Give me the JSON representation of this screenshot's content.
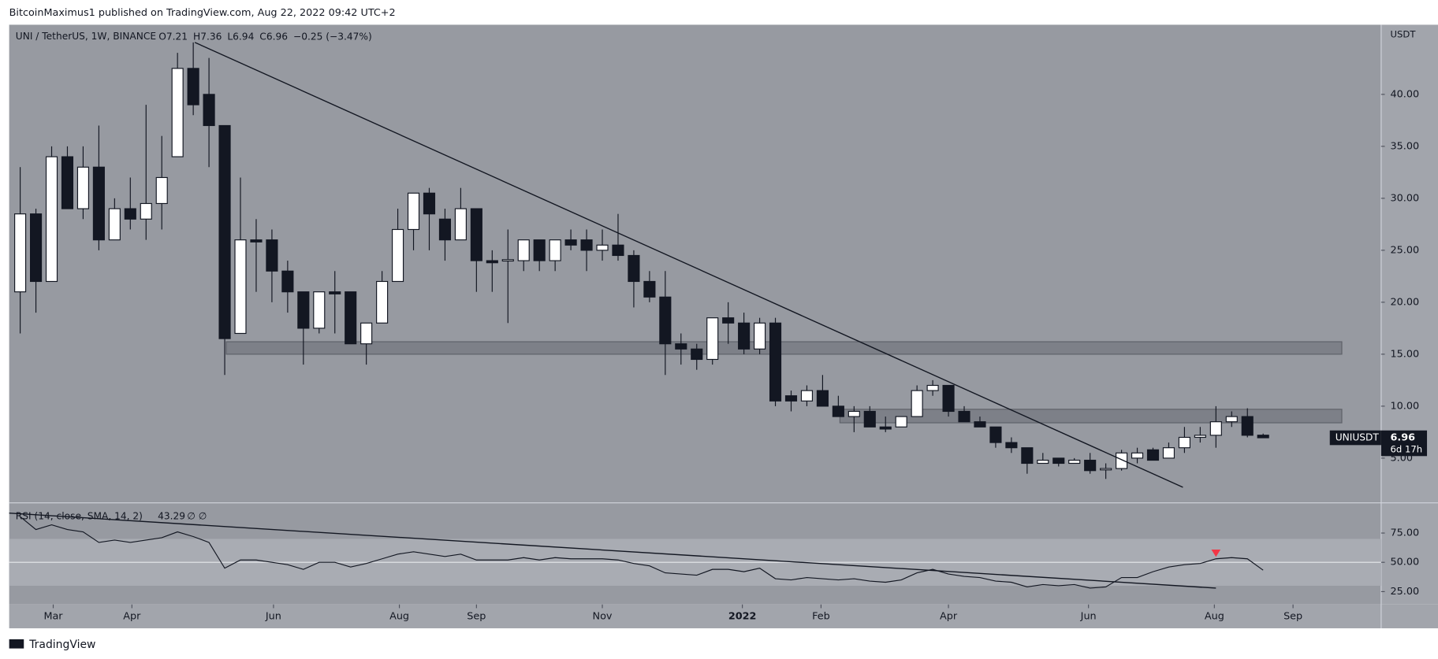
{
  "header": {
    "publisher": "BitcoinMaximus1 published on TradingView.com, Aug 22, 2022 09:42 UTC+2"
  },
  "footer": {
    "brand": "TradingView"
  },
  "chart_data": [
    {
      "type": "candlestick",
      "title": "UNI / TetherUS, 1W, BINANCE",
      "ohlc_labels": [
        "O",
        "H",
        "L",
        "C"
      ],
      "change": "−0.25 (−3.47%)",
      "unit": "USDT",
      "symbol": "UNIUSDT",
      "countdown": "6d 17h",
      "xlim": [
        -0.7,
        86.5
      ],
      "xticks": [
        {
          "value": 2.1,
          "label": "Mar"
        },
        {
          "value": 7.1,
          "label": "Apr"
        },
        {
          "value": 16.1,
          "label": "Jun"
        },
        {
          "value": 24.1,
          "label": "Aug"
        },
        {
          "value": 29.0,
          "label": "Sep"
        },
        {
          "value": 37.0,
          "label": "Nov"
        },
        {
          "value": 45.9,
          "label": "2022"
        },
        {
          "value": 50.9,
          "label": "Feb"
        },
        {
          "value": 59.0,
          "label": "Apr"
        },
        {
          "value": 67.9,
          "label": "Jun"
        },
        {
          "value": 75.9,
          "label": "Aug"
        },
        {
          "value": 80.9,
          "label": "Sep"
        }
      ],
      "ylim": [
        0.7,
        46.7
      ],
      "yticks": [
        {
          "value": 5,
          "label": "5.00"
        },
        {
          "value": 10,
          "label": "10.00"
        },
        {
          "value": 15,
          "label": "15.00"
        },
        {
          "value": 20,
          "label": "20.00"
        },
        {
          "value": 25,
          "label": "25.00"
        },
        {
          "value": 30,
          "label": "30.00"
        },
        {
          "value": 35,
          "label": "35.00"
        },
        {
          "value": 40,
          "label": "40.00"
        }
      ],
      "up_color": "#ffffff",
      "down_color": "#131722",
      "open": [
        21,
        28.5,
        22,
        34,
        29,
        33,
        26,
        29,
        28,
        29.5,
        34,
        42.5,
        40,
        37,
        17,
        26,
        26,
        23,
        21,
        17.5,
        21,
        21,
        16,
        18,
        22,
        27,
        30.5,
        28,
        26,
        29,
        24,
        24,
        24,
        26,
        24,
        26,
        26,
        25,
        25.5,
        24.5,
        22,
        20.5,
        16,
        15.5,
        14.5,
        18.5,
        18,
        15.5,
        18,
        11,
        10.5,
        11.5,
        10,
        9,
        9.5,
        8,
        8,
        9,
        11.5,
        12,
        9.5,
        8.5,
        8,
        6.5,
        6,
        4.5,
        5,
        4.5,
        4.8,
        3.9,
        4,
        5,
        5.8,
        5,
        6,
        7,
        7.2,
        8.5,
        9,
        7.21
      ],
      "high": [
        33,
        29,
        35,
        35,
        35,
        37,
        30,
        32,
        39,
        36,
        44,
        45,
        43.5,
        37,
        32,
        28,
        27,
        24,
        21,
        21,
        23,
        21,
        18,
        23,
        29,
        30.5,
        31,
        29,
        31,
        29,
        25,
        27,
        26,
        26,
        26,
        27,
        27,
        27,
        28.5,
        25,
        23,
        23,
        17,
        16,
        18.5,
        20,
        19,
        18.5,
        18.5,
        11.5,
        12,
        13,
        11,
        10,
        10,
        9,
        9,
        12,
        12.5,
        12,
        10,
        9,
        8,
        7,
        6,
        5.5,
        5,
        5,
        5.5,
        4.5,
        5.8,
        6,
        6,
        6.5,
        8,
        8,
        10,
        9.5,
        9.8,
        7.36
      ],
      "low": [
        17,
        19,
        22,
        29,
        28,
        25,
        26,
        27,
        26,
        27,
        34,
        38,
        33,
        13,
        17,
        21,
        20,
        19,
        14,
        17,
        17,
        16,
        14,
        18,
        22,
        25,
        25,
        24,
        26,
        21,
        21,
        18,
        23,
        23,
        23,
        25,
        23,
        24,
        24,
        19.5,
        20,
        13,
        14,
        13.5,
        14,
        16,
        15,
        15,
        10,
        9.5,
        10,
        10,
        9,
        7.5,
        8,
        7.5,
        8,
        9,
        11,
        9,
        8.5,
        8,
        6,
        5.5,
        3.5,
        4.5,
        4.2,
        4.5,
        3.5,
        3,
        3.8,
        4.5,
        4.8,
        5,
        5.5,
        6.5,
        6,
        8,
        7,
        6.94
      ],
      "close": [
        28.5,
        22,
        34,
        29,
        33,
        26,
        29,
        28,
        29.5,
        32,
        42.5,
        39,
        37,
        16.5,
        26,
        25.8,
        23,
        21,
        17.5,
        21,
        20.8,
        16,
        18,
        22,
        27,
        30.5,
        28.5,
        26,
        29,
        24,
        23.8,
        24.1,
        26,
        24,
        26,
        25.5,
        25,
        25.5,
        24.5,
        22,
        20.5,
        16,
        15.5,
        14.5,
        18.5,
        18,
        15.5,
        18,
        10.5,
        10.5,
        11.5,
        10,
        9,
        9.5,
        8,
        7.8,
        9,
        11.5,
        12,
        9.5,
        8.5,
        8,
        6.5,
        6,
        4.5,
        4.8,
        4.5,
        4.8,
        3.8,
        4,
        5.5,
        5.5,
        4.8,
        6,
        7,
        7.2,
        8.5,
        9,
        7.2,
        6.96
      ],
      "zones": [
        {
          "x": [
            13.1,
            84.0
          ],
          "y": [
            15.0,
            16.2
          ]
        },
        {
          "x": [
            52.1,
            84.0
          ],
          "y": [
            8.4,
            9.7
          ]
        }
      ],
      "trendlines": [
        {
          "x": [
            11.1,
            73.9
          ],
          "y": [
            45,
            2.2
          ]
        }
      ]
    },
    {
      "type": "line",
      "title": "RSI (14, close, SMA, 14, 2)",
      "extra": "∅ ∅",
      "color": "#131722",
      "ylim": [
        14,
        100.8
      ],
      "yticks": [
        {
          "value": 25,
          "label": "25.00"
        },
        {
          "value": 50,
          "label": "50.00"
        },
        {
          "value": 75,
          "label": "75.00"
        }
      ],
      "band": [
        30,
        70
      ],
      "midline": 50,
      "values": [
        89,
        78,
        82,
        78,
        76,
        67,
        69,
        67,
        69,
        71,
        76,
        72,
        67,
        45,
        52,
        52,
        50,
        48,
        44,
        50,
        50,
        46,
        49,
        53,
        57,
        59,
        57,
        55,
        57,
        52,
        52,
        52,
        54,
        52,
        54,
        53,
        53,
        53,
        52,
        49,
        47,
        41,
        40,
        39,
        44,
        44,
        42,
        45,
        36,
        35,
        37,
        36,
        35,
        36,
        34,
        33,
        35,
        41,
        44,
        40,
        38,
        37,
        34,
        33,
        29,
        31,
        30,
        31,
        28,
        29,
        37,
        37,
        42,
        46,
        48,
        49,
        53,
        54,
        53,
        43.29
      ],
      "trendlines": [
        {
          "x": [
            -0.7,
            76.0
          ],
          "y": [
            92,
            28
          ]
        }
      ],
      "marker": {
        "x": 76.0,
        "y": 57.8,
        "color": "#f23645"
      }
    }
  ]
}
